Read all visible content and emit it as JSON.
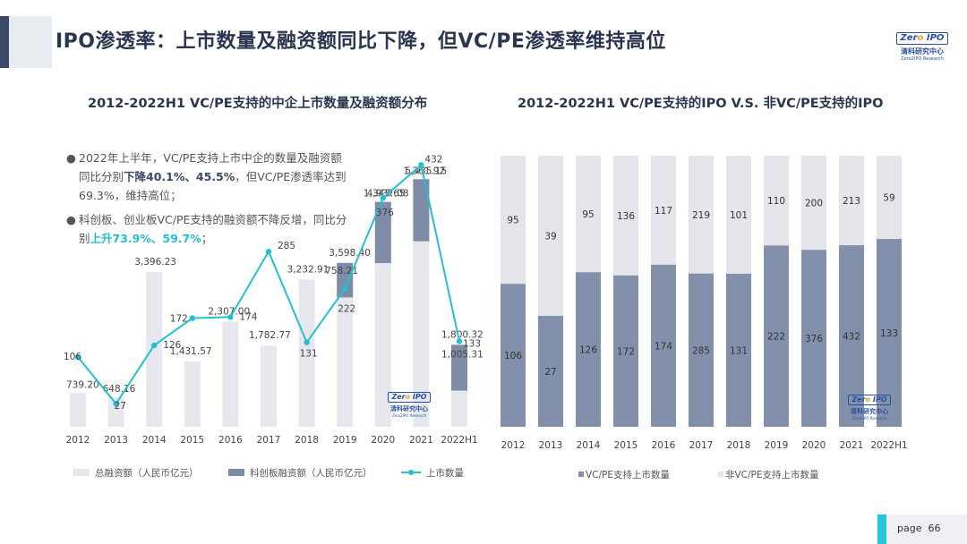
{
  "page": {
    "title": "IPO渗透率：上市数量及融资额同比下降，但VC/PE渗透率维持高位",
    "footer_label": "page",
    "page_number": "66"
  },
  "logo": {
    "text_left": "Zer",
    "text_o": "o",
    "text_right": "IPO",
    "cn": "清科研究中心",
    "en": "Zero2IPO Research"
  },
  "notes": {
    "p1_a": "2022年上半年，VC/PE支持上市中企的数量及融资额同比分别",
    "p1_b": "下降40.1%、45.5%",
    "p1_c": "，但VC/PE渗透率达到69.3%，维持高位；",
    "p2_a": "科创板、创业板VC/PE支持的融资额不降反增，同比分别",
    "p2_b": "上升73.9%、59.7%",
    "p2_c": "；"
  },
  "chart_data": [
    {
      "type": "bar+line",
      "title": "2012-2022H1 VC/PE支持的中企上市数量及融资额分布",
      "categories": [
        "2012",
        "2013",
        "2014",
        "2015",
        "2016",
        "2017",
        "2018",
        "2019",
        "2020",
        "2021",
        "2022H1"
      ],
      "series": [
        {
          "name": "总融资额（人民币亿元）",
          "kind": "bar",
          "color": "#e6e8ee",
          "values": [
            739.2,
            648.16,
            3396.23,
            1431.57,
            2307.0,
            1782.77,
            3232.91,
            3598.4,
            4937.08,
            5435.15,
            1800.32
          ],
          "labels": [
            "739.20",
            "648.16",
            "3,396.23",
            "1,431.57",
            "2,307.00",
            "1,782.77",
            "3,232.91",
            "3,598.40",
            "4,937.08",
            "5,435.15",
            "1,800.32"
          ]
        },
        {
          "name": "科创板融资额（人民币亿元）",
          "kind": "bar-segment",
          "color": "#7e8ca8",
          "values": [
            null,
            null,
            null,
            null,
            null,
            null,
            null,
            758.21,
            1343.65,
            1361.92,
            1005.31
          ],
          "labels": [
            "",
            "",
            "",
            "",
            "",
            "",
            "",
            "758.21",
            "1,343.65",
            "1,361.92",
            "1,005.31"
          ]
        },
        {
          "name": "上市数量",
          "kind": "line",
          "color": "#25c0d0",
          "values": [
            106,
            27,
            126,
            172,
            174,
            285,
            131,
            222,
            376,
            432,
            133
          ]
        }
      ]
    },
    {
      "type": "stacked-bar",
      "title": "2012-2022H1 VC/PE支持的IPO V.S. 非VC/PE支持的IPO",
      "categories": [
        "2012",
        "2013",
        "2014",
        "2015",
        "2016",
        "2017",
        "2018",
        "2019",
        "2020",
        "2021",
        "2022H1"
      ],
      "series": [
        {
          "name": "VC/PE支持上市数量",
          "color": "#8390ab",
          "values": [
            106,
            27,
            126,
            172,
            174,
            285,
            131,
            222,
            376,
            432,
            133
          ]
        },
        {
          "name": "非VC/PE支持上市数量",
          "color": "#e4e6ec",
          "values": [
            95,
            39,
            95,
            136,
            117,
            219,
            101,
            110,
            200,
            213,
            59
          ]
        }
      ]
    }
  ]
}
